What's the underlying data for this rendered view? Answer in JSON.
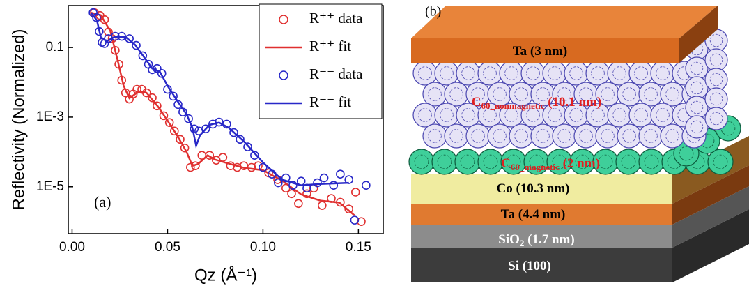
{
  "chart_data": {
    "type": "line",
    "panel_label": "(a)",
    "x_label": "Qz (Å⁻¹)",
    "y_label": "Reflectivity (Normalized)",
    "xlim": [
      -0.002,
      0.163
    ],
    "ylim": [
      4.5e-07,
      1.6
    ],
    "log_y": true,
    "xticks": [
      {
        "value": 0,
        "label": "0.00"
      },
      0.05,
      {
        "value": 0.1,
        "label": "0.10"
      },
      {
        "value": 0.15,
        "label": "0.15"
      }
    ],
    "yticks": [
      0.1,
      {
        "value": 0.001,
        "label": "1E-3"
      },
      {
        "value": 1e-05,
        "label": "1E-5"
      }
    ],
    "legend": "upper right",
    "series": [
      {
        "name": "R⁺⁺ data",
        "color": "#e03030",
        "style": "markers",
        "x": [
          0.0117,
          0.0146,
          0.017,
          0.019,
          0.021,
          0.0226,
          0.0245,
          0.026,
          0.028,
          0.03,
          0.032,
          0.034,
          0.0365,
          0.039,
          0.042,
          0.0445,
          0.048,
          0.051,
          0.0536,
          0.0566,
          0.059,
          0.062,
          0.0646,
          0.068,
          0.072,
          0.0755,
          0.079,
          0.083,
          0.0865,
          0.09,
          0.094,
          0.0975,
          0.103,
          0.1077,
          0.112,
          0.115,
          0.1186,
          0.123,
          0.1266,
          0.131,
          0.1358,
          0.1405,
          0.145,
          0.1485,
          0.1515
        ],
        "values": [
          1.0,
          0.83,
          0.63,
          0.28,
          0.18,
          0.083,
          0.033,
          0.0115,
          0.005,
          0.0033,
          0.0046,
          0.0063,
          0.0063,
          0.005,
          0.0036,
          0.0021,
          0.0011,
          0.0007,
          0.0004,
          0.00023,
          0.00013,
          3.6e-05,
          4e-05,
          8e-05,
          8e-05,
          5.8e-05,
          7e-05,
          4e-05,
          3.6e-05,
          4e-05,
          3.6e-05,
          4e-05,
          2.5e-05,
          1.6e-05,
          9.1e-06,
          6.3e-06,
          3.3e-06,
          6.3e-06,
          9.1e-06,
          2.9e-06,
          4.6e-06,
          3.6e-06,
          2.3e-06,
          7e-06,
          1e-06
        ]
      },
      {
        "name": "R⁺⁺ fit",
        "color": "#e03030",
        "style": "line",
        "x": [
          0.01,
          0.015,
          0.02,
          0.024,
          0.027,
          0.03,
          0.035,
          0.039,
          0.045,
          0.05,
          0.055,
          0.06,
          0.063,
          0.066,
          0.071,
          0.075,
          0.08,
          0.09,
          0.1,
          0.11,
          0.12,
          0.13,
          0.14,
          0.148
        ],
        "values": [
          1.0,
          0.85,
          0.3,
          0.04,
          0.008,
          0.0035,
          0.0055,
          0.005,
          0.002,
          0.0008,
          0.0003,
          0.0001,
          4e-05,
          4.5e-05,
          8e-05,
          6e-05,
          5e-05,
          3.5e-05,
          3e-05,
          1.5e-05,
          6e-06,
          4e-06,
          3.5e-06,
          1.5e-06
        ]
      },
      {
        "name": "R⁻⁻ data",
        "color": "#2828c8",
        "style": "markers",
        "x": [
          0.011,
          0.0128,
          0.0142,
          0.0157,
          0.017,
          0.019,
          0.0226,
          0.026,
          0.03,
          0.0336,
          0.037,
          0.04,
          0.042,
          0.0445,
          0.047,
          0.05,
          0.053,
          0.0555,
          0.058,
          0.061,
          0.064,
          0.0664,
          0.07,
          0.0737,
          0.077,
          0.081,
          0.0847,
          0.088,
          0.092,
          0.0956,
          0.1,
          0.1047,
          0.108,
          0.112,
          0.1157,
          0.12,
          0.123,
          0.1285,
          0.132,
          0.137,
          0.1405,
          0.145,
          0.148,
          0.154
        ],
        "values": [
          1.0,
          0.72,
          0.29,
          0.14,
          0.13,
          0.18,
          0.21,
          0.21,
          0.18,
          0.115,
          0.058,
          0.033,
          0.023,
          0.025,
          0.018,
          0.0063,
          0.004,
          0.0023,
          0.0014,
          0.0009,
          0.00046,
          0.0004,
          0.00046,
          0.00063,
          0.00072,
          0.00063,
          0.00036,
          0.00023,
          0.00014,
          8e-05,
          3.6e-05,
          2.3e-05,
          1.3e-05,
          1.8e-05,
          1.1e-05,
          1.45e-05,
          9.1e-06,
          1.3e-05,
          1.8e-05,
          1.1e-05,
          2.3e-05,
          1.6e-05,
          1.1e-06,
          1.1e-05
        ]
      },
      {
        "name": "R⁻⁻ fit",
        "color": "#2828c8",
        "style": "line",
        "x": [
          0.01,
          0.013,
          0.015,
          0.018,
          0.022,
          0.028,
          0.033,
          0.038,
          0.042,
          0.046,
          0.05,
          0.055,
          0.06,
          0.063,
          0.065,
          0.067,
          0.072,
          0.077,
          0.082,
          0.09,
          0.1,
          0.11,
          0.12,
          0.13,
          0.145
        ],
        "values": [
          1.0,
          0.6,
          0.2,
          0.15,
          0.2,
          0.2,
          0.12,
          0.05,
          0.025,
          0.02,
          0.008,
          0.003,
          0.0012,
          0.0005,
          0.00015,
          0.0003,
          0.0006,
          0.0007,
          0.0005,
          0.0002,
          5e-05,
          1.6e-05,
          1.1e-05,
          1.2e-05,
          1.3e-05
        ]
      }
    ]
  },
  "diagram": {
    "panel_label": "(b)",
    "layers": [
      {
        "parts": [
          "Ta (3 nm)"
        ]
      },
      {
        "parts": [
          "C",
          "60_nonmagnetic",
          " (10.1 nm)"
        ]
      },
      {
        "parts": [
          "C",
          "60_magnetic",
          " (2 nm)"
        ]
      },
      {
        "parts": [
          "Co (10.3 nm)"
        ]
      },
      {
        "parts": [
          "Ta (4.4 nm)"
        ]
      },
      {
        "parts": [
          "SiO",
          "2",
          " (1.7 nm)"
        ]
      },
      {
        "parts": [
          "Si (100)"
        ]
      }
    ]
  }
}
